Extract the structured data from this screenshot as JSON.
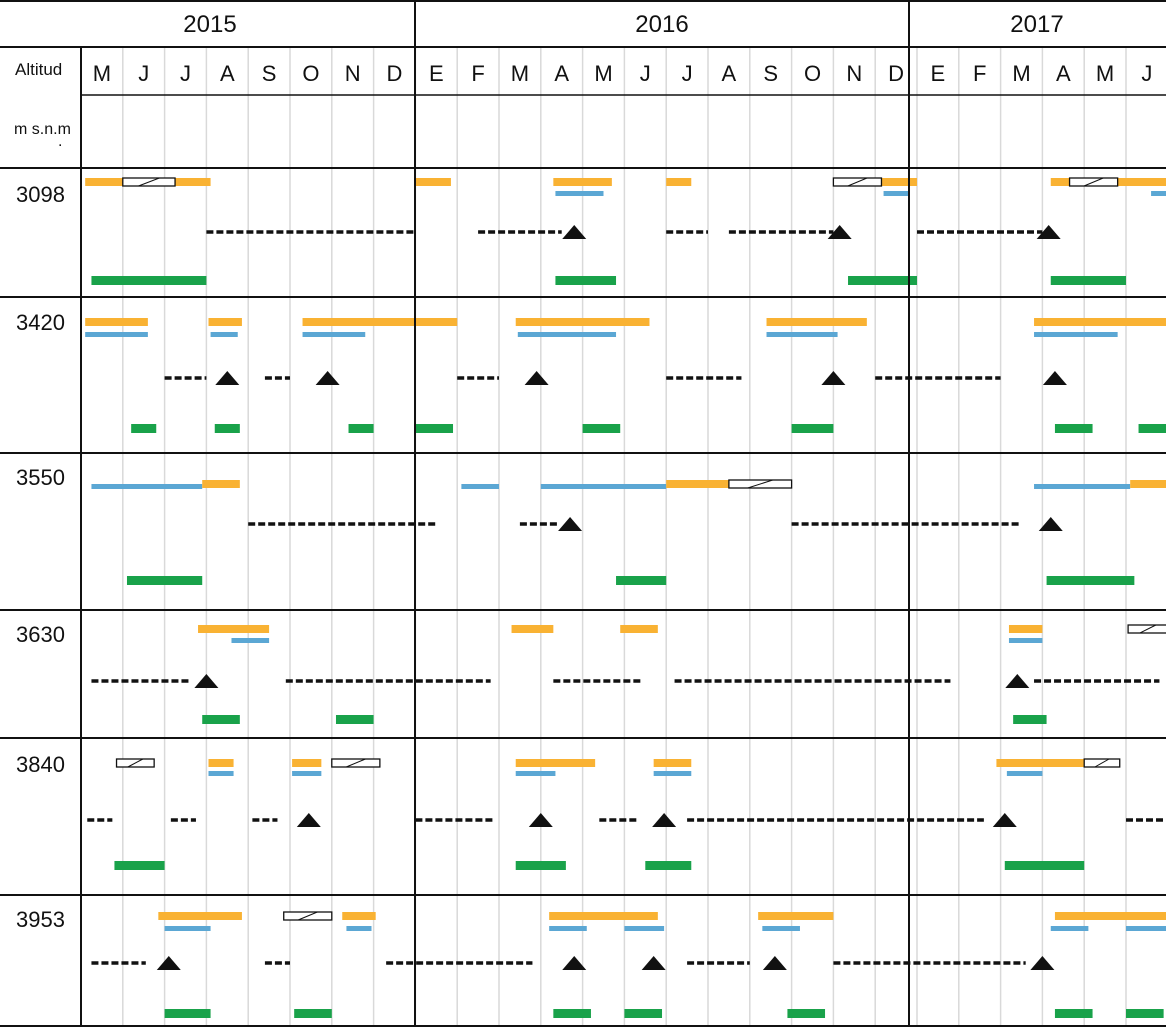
{
  "header": {
    "altitude_label_line1": "Altitud",
    "altitude_label_line2": "m s.n.m",
    "altitude_label_dot": "."
  },
  "years": [
    "2015",
    "2016",
    "2017"
  ],
  "month_labels": [
    "M",
    "J",
    "J",
    "A",
    "S",
    "O",
    "N",
    "D",
    "E",
    "F",
    "M",
    "A",
    "M",
    "J",
    "J",
    "A",
    "S",
    "O",
    "N",
    "D",
    "E",
    "F",
    "M",
    "A",
    "M",
    "J"
  ],
  "colors": {
    "orange": "#F9B233",
    "blue": "#5BA7D4",
    "green": "#19A24A",
    "black": "#111111",
    "grid": "#d9d9d9"
  },
  "chart_data": {
    "type": "timeline",
    "x_start_month": "2015-05",
    "row_labels": [
      "3098",
      "3420",
      "3550",
      "3630",
      "3840",
      "3953"
    ],
    "rows": [
      {
        "altitude": "3098",
        "orange": [
          [
            0.1,
            3.1
          ],
          [
            8.0,
            8.85
          ],
          [
            11.3,
            12.7
          ],
          [
            14.0,
            14.6
          ],
          [
            19.0,
            20.0
          ],
          [
            23.2,
            26.0
          ]
        ],
        "blue": [
          [
            11.35,
            12.5
          ],
          [
            19.2,
            19.8
          ],
          [
            25.6,
            26.0
          ]
        ],
        "hatched": [
          [
            1.0,
            2.25
          ],
          [
            18.0,
            19.15
          ],
          [
            23.65,
            24.8
          ]
        ],
        "dashed": [
          [
            3.0,
            8.0
          ],
          [
            9.5,
            11.5
          ],
          [
            14.0,
            15.0
          ],
          [
            15.5,
            18.0
          ],
          [
            20.0,
            23.0
          ]
        ],
        "triangles": [
          11.8,
          18.15,
          23.15
        ],
        "green": [
          [
            0.25,
            3.0
          ],
          [
            11.35,
            12.8
          ],
          [
            18.35,
            20.0
          ],
          [
            23.2,
            25.0
          ]
        ]
      },
      {
        "altitude": "3420",
        "orange": [
          [
            0.1,
            1.6
          ],
          [
            3.05,
            3.85
          ],
          [
            5.3,
            9.0
          ],
          [
            10.4,
            13.6
          ],
          [
            16.4,
            18.8
          ],
          [
            22.8,
            26.0
          ]
        ],
        "blue": [
          [
            0.1,
            1.6
          ],
          [
            3.1,
            3.75
          ],
          [
            5.3,
            6.8
          ],
          [
            10.45,
            12.8
          ],
          [
            16.4,
            18.1
          ],
          [
            22.8,
            24.8
          ]
        ],
        "hatched": [],
        "dashed": [
          [
            2.0,
            3.0
          ],
          [
            4.4,
            5.0
          ],
          [
            9.0,
            10.0
          ],
          [
            14.0,
            15.8
          ],
          [
            19.0,
            22.0
          ]
        ],
        "triangles": [
          3.5,
          5.9,
          10.9,
          18.0,
          23.3
        ],
        "green": [
          [
            1.2,
            1.8
          ],
          [
            3.2,
            3.8
          ],
          [
            6.4,
            7.0
          ],
          [
            8.0,
            8.9
          ],
          [
            12.0,
            12.9
          ],
          [
            17.0,
            18.0
          ],
          [
            23.3,
            24.2
          ],
          [
            25.3,
            26.0
          ]
        ]
      },
      {
        "altitude": "3550",
        "orange": [
          [
            2.9,
            3.8
          ],
          [
            14.0,
            15.5
          ],
          [
            25.1,
            26.0
          ]
        ],
        "blue": [
          [
            0.25,
            2.9
          ],
          [
            9.1,
            10.0
          ],
          [
            11.0,
            14.0
          ],
          [
            22.8,
            25.1
          ]
        ],
        "hatched": [
          [
            15.5,
            17.0
          ]
        ],
        "dashed": [
          [
            4.0,
            8.5
          ],
          [
            10.5,
            11.4
          ],
          [
            17.0,
            22.5
          ]
        ],
        "triangles": [
          11.7,
          23.2
        ],
        "green": [
          [
            1.1,
            2.9
          ],
          [
            12.8,
            14.0
          ],
          [
            23.1,
            25.2
          ]
        ]
      },
      {
        "altitude": "3630",
        "orange": [
          [
            2.8,
            4.5
          ],
          [
            10.3,
            11.3
          ],
          [
            12.9,
            13.8
          ],
          [
            22.2,
            23.0
          ]
        ],
        "blue": [
          [
            3.6,
            4.5
          ],
          [
            22.2,
            23.0
          ]
        ],
        "hatched": [
          [
            25.05,
            26.0
          ]
        ],
        "dashed": [
          [
            0.25,
            2.6
          ],
          [
            4.9,
            9.8
          ],
          [
            11.3,
            13.4
          ],
          [
            14.2,
            20.8
          ],
          [
            22.8,
            25.8
          ]
        ],
        "triangles": [
          3.0,
          22.4
        ],
        "green": [
          [
            2.9,
            3.8
          ],
          [
            6.1,
            7.0
          ],
          [
            22.3,
            23.1
          ]
        ]
      },
      {
        "altitude": "3840",
        "orange": [
          [
            3.05,
            3.65
          ],
          [
            5.05,
            5.75
          ],
          [
            10.4,
            12.3
          ],
          [
            13.7,
            14.6
          ],
          [
            21.9,
            24.4
          ]
        ],
        "blue": [
          [
            3.05,
            3.65
          ],
          [
            5.05,
            5.75
          ],
          [
            10.4,
            11.35
          ],
          [
            13.7,
            14.6
          ],
          [
            22.15,
            23.0
          ]
        ],
        "hatched": [
          [
            0.85,
            1.75
          ],
          [
            6.0,
            7.15
          ],
          [
            24.0,
            24.85
          ]
        ],
        "dashed": [
          [
            0.15,
            0.75
          ],
          [
            2.15,
            2.75
          ],
          [
            4.1,
            4.7
          ],
          [
            8.0,
            9.85
          ],
          [
            12.4,
            13.3
          ],
          [
            14.5,
            21.6
          ],
          [
            25.0,
            26.0
          ]
        ],
        "triangles": [
          5.45,
          11.0,
          13.95,
          22.1
        ],
        "green": [
          [
            0.8,
            2.0
          ],
          [
            10.4,
            11.6
          ],
          [
            13.5,
            14.6
          ],
          [
            22.1,
            24.0
          ]
        ]
      },
      {
        "altitude": "3953",
        "orange": [
          [
            1.85,
            3.85
          ],
          [
            6.25,
            7.05
          ],
          [
            11.2,
            13.8
          ],
          [
            16.2,
            18.0
          ],
          [
            23.3,
            26.0
          ]
        ],
        "blue": [
          [
            2.0,
            3.1
          ],
          [
            6.35,
            6.95
          ],
          [
            11.2,
            12.1
          ],
          [
            13.0,
            13.95
          ],
          [
            16.3,
            17.2
          ],
          [
            23.2,
            24.1
          ],
          [
            25.0,
            26.0
          ]
        ],
        "hatched": [
          [
            4.85,
            6.0
          ]
        ],
        "dashed": [
          [
            0.25,
            1.55
          ],
          [
            4.4,
            5.0
          ],
          [
            7.3,
            10.8
          ],
          [
            14.5,
            16.0
          ],
          [
            18.0,
            22.6
          ]
        ],
        "triangles": [
          2.1,
          11.8,
          13.7,
          16.6,
          23.0
        ],
        "green": [
          [
            2.0,
            3.1
          ],
          [
            5.1,
            6.0
          ],
          [
            11.3,
            12.2
          ],
          [
            13.0,
            13.9
          ],
          [
            16.9,
            17.8
          ],
          [
            23.3,
            24.2
          ],
          [
            25.0,
            25.9
          ]
        ]
      }
    ]
  }
}
